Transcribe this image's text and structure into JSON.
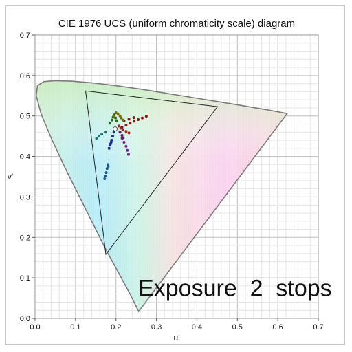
{
  "chart_data": {
    "type": "scatter",
    "title": "CIE 1976 UCS (uniform chromaticity scale) diagram",
    "xlabel": "u'",
    "ylabel": "v'",
    "xlim": [
      0,
      0.7
    ],
    "ylim": [
      0,
      0.7
    ],
    "x_ticks": [
      0.0,
      0.1,
      0.2,
      0.3,
      0.4,
      0.5,
      0.6,
      0.7
    ],
    "y_ticks": [
      0.0,
      0.1,
      0.2,
      0.3,
      0.4,
      0.5,
      0.6,
      0.7
    ],
    "x_tick_labels": [
      "0.0",
      "0.1",
      "0.2",
      "0.3",
      "0.4",
      "0.5",
      "0.6",
      "0.7"
    ],
    "y_tick_labels": [
      "0.0",
      "0.1",
      "0.2",
      "0.3",
      "0.4",
      "0.5",
      "0.6",
      "0.7"
    ],
    "grid": true,
    "annotation": "Exposure  2  stops",
    "spectral_locus": [
      [
        0.256,
        0.017
      ],
      [
        0.235,
        0.06
      ],
      [
        0.205,
        0.115
      ],
      [
        0.175,
        0.17
      ],
      [
        0.145,
        0.23
      ],
      [
        0.11,
        0.3
      ],
      [
        0.075,
        0.37
      ],
      [
        0.04,
        0.445
      ],
      [
        0.015,
        0.505
      ],
      [
        0.003,
        0.55
      ],
      [
        0.006,
        0.575
      ],
      [
        0.022,
        0.585
      ],
      [
        0.05,
        0.587
      ],
      [
        0.09,
        0.586
      ],
      [
        0.14,
        0.582
      ],
      [
        0.2,
        0.575
      ],
      [
        0.27,
        0.565
      ],
      [
        0.35,
        0.552
      ],
      [
        0.43,
        0.539
      ],
      [
        0.51,
        0.526
      ],
      [
        0.58,
        0.514
      ],
      [
        0.623,
        0.506
      ]
    ],
    "gamut_triangle": [
      [
        0.125,
        0.562
      ],
      [
        0.451,
        0.523
      ],
      [
        0.175,
        0.158
      ]
    ],
    "white_point": [
      0.198,
      0.468
    ],
    "series": [
      {
        "color": "#8a1a1a",
        "points": [
          [
            0.215,
            0.472
          ],
          [
            0.225,
            0.477
          ],
          [
            0.235,
            0.482
          ],
          [
            0.245,
            0.487
          ],
          [
            0.255,
            0.491
          ],
          [
            0.265,
            0.495
          ],
          [
            0.275,
            0.499
          ],
          [
            0.22,
            0.488
          ],
          [
            0.232,
            0.492
          ],
          [
            0.244,
            0.496
          ]
        ]
      },
      {
        "color": "#2a6a1a",
        "points": [
          [
            0.19,
            0.49
          ],
          [
            0.193,
            0.497
          ],
          [
            0.196,
            0.503
          ],
          [
            0.199,
            0.495
          ],
          [
            0.202,
            0.488
          ],
          [
            0.185,
            0.482
          ]
        ]
      },
      {
        "color": "#7a6a00",
        "points": [
          [
            0.195,
            0.5
          ],
          [
            0.2,
            0.508
          ],
          [
            0.205,
            0.505
          ],
          [
            0.21,
            0.5
          ],
          [
            0.213,
            0.495
          ],
          [
            0.217,
            0.49
          ]
        ]
      },
      {
        "color": "#1a2a8a",
        "points": [
          [
            0.195,
            0.46
          ],
          [
            0.192,
            0.45
          ],
          [
            0.189,
            0.44
          ],
          [
            0.186,
            0.43
          ],
          [
            0.183,
            0.42
          ],
          [
            0.188,
            0.435
          ],
          [
            0.185,
            0.428
          ]
        ]
      },
      {
        "color": "#1a5a9a",
        "points": [
          [
            0.18,
            0.38
          ],
          [
            0.178,
            0.37
          ],
          [
            0.176,
            0.36
          ],
          [
            0.174,
            0.352
          ],
          [
            0.172,
            0.345
          ],
          [
            0.181,
            0.376
          ]
        ]
      },
      {
        "color": "#7a1a8a",
        "points": [
          [
            0.215,
            0.445
          ],
          [
            0.22,
            0.435
          ],
          [
            0.225,
            0.425
          ],
          [
            0.228,
            0.415
          ],
          [
            0.231,
            0.405
          ]
        ]
      },
      {
        "color": "#1a7a7a",
        "points": [
          [
            0.175,
            0.46
          ],
          [
            0.165,
            0.455
          ],
          [
            0.158,
            0.45
          ],
          [
            0.152,
            0.445
          ]
        ]
      },
      {
        "color": "#5a1a6a",
        "points": [
          [
            0.21,
            0.46
          ],
          [
            0.215,
            0.452
          ],
          [
            0.218,
            0.446
          ]
        ]
      },
      {
        "color": "#a0201a",
        "points": [
          [
            0.207,
            0.475
          ],
          [
            0.212,
            0.47
          ],
          [
            0.217,
            0.466
          ],
          [
            0.225,
            0.462
          ],
          [
            0.232,
            0.458
          ]
        ]
      }
    ]
  }
}
